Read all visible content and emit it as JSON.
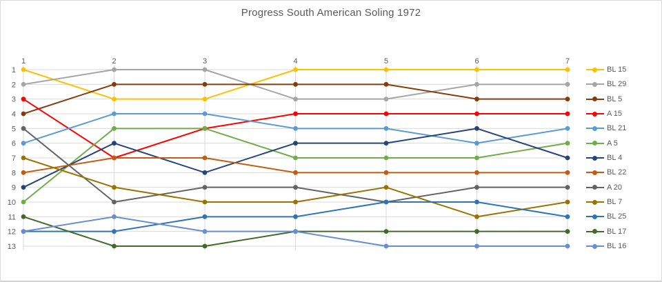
{
  "frame": {
    "background": "#FFFFFF",
    "border_color": "#D9D9D9"
  },
  "chart_data": {
    "type": "line",
    "title": "Progress South American Soling 1972",
    "x": [
      "1",
      "2",
      "3",
      "4",
      "5",
      "6",
      "7"
    ],
    "x_axis_position": "top",
    "y_axis": {
      "reversed": true,
      "min": 1,
      "max": 13,
      "ticks": [
        "1",
        "2",
        "3",
        "4",
        "5",
        "6",
        "7",
        "8",
        "9",
        "10",
        "11",
        "12",
        "13"
      ]
    },
    "xlabel": "",
    "ylabel": "",
    "grid": true,
    "legend_position": "right",
    "text_color": "#595959",
    "gridline_color": "#D9D9D9",
    "series": [
      {
        "name": "BL 15",
        "color": "#FFC000",
        "values": [
          1,
          3,
          3,
          1,
          1,
          1,
          1
        ]
      },
      {
        "name": "BL 29",
        "color": "#A5A5A5",
        "values": [
          2,
          1,
          1,
          3,
          3,
          2,
          2
        ]
      },
      {
        "name": "BL 5",
        "color": "#843C0C",
        "values": [
          4,
          2,
          2,
          2,
          2,
          3,
          3
        ]
      },
      {
        "name": "A 15",
        "color": "#FF0000",
        "values": [
          3,
          7,
          5,
          4,
          4,
          4,
          4
        ]
      },
      {
        "name": "BL 21",
        "color": "#5B9BD5",
        "values": [
          6,
          4,
          4,
          5,
          5,
          6,
          5
        ]
      },
      {
        "name": "A 5",
        "color": "#70AD47",
        "values": [
          10,
          5,
          5,
          7,
          7,
          7,
          6
        ]
      },
      {
        "name": "BL 4",
        "color": "#264478",
        "values": [
          9,
          6,
          8,
          6,
          6,
          5,
          7
        ]
      },
      {
        "name": "BL 22",
        "color": "#C55A11",
        "values": [
          8,
          7,
          7,
          8,
          8,
          8,
          8
        ]
      },
      {
        "name": "A 20",
        "color": "#636363",
        "values": [
          5,
          10,
          9,
          9,
          10,
          9,
          9
        ]
      },
      {
        "name": "BL 7",
        "color": "#997300",
        "values": [
          7,
          9,
          10,
          10,
          9,
          11,
          10
        ]
      },
      {
        "name": "BL 25",
        "color": "#2E75B6",
        "values": [
          12,
          12,
          11,
          11,
          10,
          10,
          11
        ]
      },
      {
        "name": "BL 17",
        "color": "#43682B",
        "values": [
          11,
          13,
          13,
          12,
          12,
          12,
          12
        ]
      },
      {
        "name": "BL 16",
        "color": "#698ED0",
        "values": [
          12,
          11,
          12,
          12,
          13,
          13,
          13
        ]
      }
    ]
  }
}
